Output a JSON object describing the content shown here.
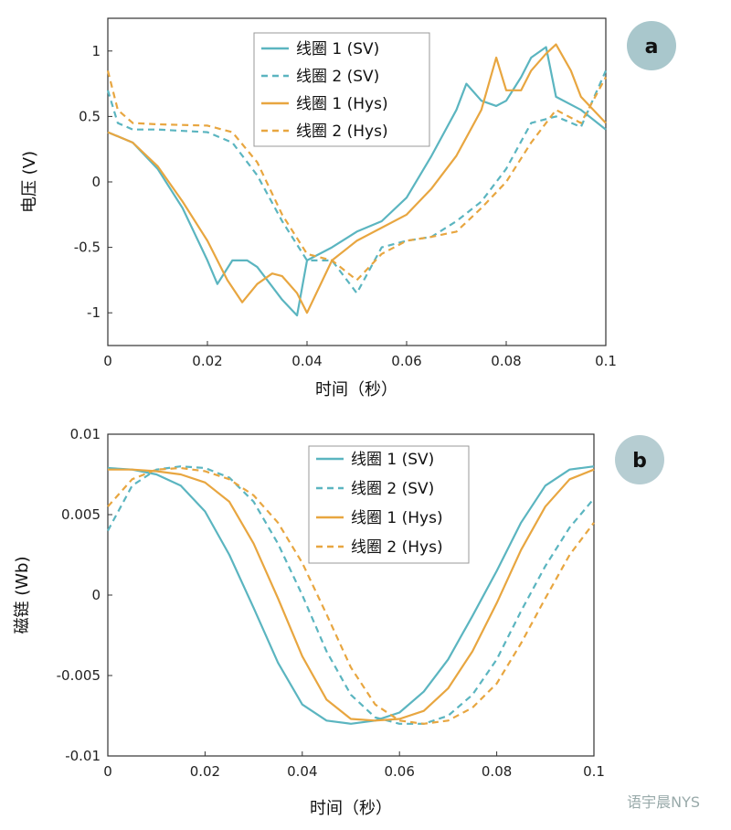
{
  "colors": {
    "sv": "#5bb5c0",
    "hys": "#e8a640",
    "badge_a": "#a9c7cc",
    "badge_b": "#b6cdd2"
  },
  "watermark": "语宇晨NYS",
  "chart_data": [
    {
      "id": "a",
      "type": "line",
      "panel_label": "a",
      "xlabel": "时间（秒）",
      "ylabel": "电压 (V)",
      "xlim": [
        0,
        0.1
      ],
      "ylim": [
        -1.25,
        1.25
      ],
      "xticks": [
        0,
        0.02,
        0.04,
        0.06,
        0.08,
        0.1
      ],
      "xtick_labels": [
        "0",
        "0.02",
        "0.04",
        "0.06",
        "0.08",
        "0.1"
      ],
      "yticks": [
        -1,
        -0.5,
        0,
        0.5,
        1
      ],
      "ytick_labels": [
        "-1",
        "-0.5",
        "0",
        "0.5",
        "1"
      ],
      "grid": false,
      "legend_position": "top-center",
      "series": [
        {
          "name": "线圈 1 (SV)",
          "color_key": "sv",
          "dash": false,
          "x": [
            0,
            0.005,
            0.01,
            0.015,
            0.02,
            0.022,
            0.025,
            0.028,
            0.03,
            0.033,
            0.035,
            0.038,
            0.04,
            0.045,
            0.05,
            0.055,
            0.06,
            0.065,
            0.07,
            0.072,
            0.075,
            0.078,
            0.08,
            0.083,
            0.085,
            0.088,
            0.09,
            0.095,
            0.1
          ],
          "y": [
            0.38,
            0.3,
            0.1,
            -0.2,
            -0.6,
            -0.78,
            -0.6,
            -0.6,
            -0.65,
            -0.8,
            -0.9,
            -1.02,
            -0.6,
            -0.5,
            -0.38,
            -0.3,
            -0.12,
            0.2,
            0.55,
            0.75,
            0.62,
            0.58,
            0.62,
            0.8,
            0.95,
            1.03,
            0.65,
            0.55,
            0.4
          ]
        },
        {
          "name": "线圈 2 (SV)",
          "color_key": "sv",
          "dash": true,
          "x": [
            0,
            0.002,
            0.005,
            0.01,
            0.02,
            0.025,
            0.03,
            0.035,
            0.04,
            0.045,
            0.05,
            0.055,
            0.06,
            0.065,
            0.07,
            0.075,
            0.08,
            0.085,
            0.09,
            0.095,
            0.1
          ],
          "y": [
            0.7,
            0.45,
            0.4,
            0.4,
            0.38,
            0.3,
            0.05,
            -0.3,
            -0.6,
            -0.6,
            -0.85,
            -0.5,
            -0.45,
            -0.42,
            -0.3,
            -0.15,
            0.1,
            0.45,
            0.5,
            0.42,
            0.85
          ]
        },
        {
          "name": "线圈 1 (Hys)",
          "color_key": "hys",
          "dash": false,
          "x": [
            0,
            0.005,
            0.01,
            0.015,
            0.02,
            0.024,
            0.027,
            0.03,
            0.033,
            0.035,
            0.038,
            0.04,
            0.045,
            0.05,
            0.055,
            0.06,
            0.065,
            0.07,
            0.075,
            0.078,
            0.08,
            0.083,
            0.085,
            0.088,
            0.09,
            0.093,
            0.095,
            0.1
          ],
          "y": [
            0.38,
            0.3,
            0.12,
            -0.15,
            -0.45,
            -0.75,
            -0.92,
            -0.78,
            -0.7,
            -0.72,
            -0.85,
            -1.0,
            -0.6,
            -0.45,
            -0.35,
            -0.25,
            -0.05,
            0.2,
            0.55,
            0.95,
            0.7,
            0.7,
            0.85,
            0.98,
            1.05,
            0.85,
            0.65,
            0.45
          ]
        },
        {
          "name": "线圈 2 (Hys)",
          "color_key": "hys",
          "dash": true,
          "x": [
            0,
            0.002,
            0.005,
            0.01,
            0.02,
            0.025,
            0.03,
            0.035,
            0.04,
            0.045,
            0.05,
            0.055,
            0.06,
            0.065,
            0.07,
            0.075,
            0.08,
            0.085,
            0.09,
            0.095,
            0.1
          ],
          "y": [
            0.85,
            0.55,
            0.45,
            0.44,
            0.43,
            0.38,
            0.15,
            -0.25,
            -0.55,
            -0.6,
            -0.75,
            -0.55,
            -0.45,
            -0.42,
            -0.38,
            -0.2,
            0.0,
            0.3,
            0.55,
            0.45,
            0.8
          ]
        }
      ]
    },
    {
      "id": "b",
      "type": "line",
      "panel_label": "b",
      "xlabel": "时间（秒）",
      "ylabel": "磁链 (Wb)",
      "xlim": [
        0,
        0.1
      ],
      "ylim": [
        -0.01,
        0.01
      ],
      "xticks": [
        0,
        0.02,
        0.04,
        0.06,
        0.08,
        0.1
      ],
      "xtick_labels": [
        "0",
        "0.02",
        "0.04",
        "0.06",
        "0.08",
        "0.1"
      ],
      "yticks": [
        -0.01,
        -0.005,
        0,
        0.005,
        0.01
      ],
      "ytick_labels": [
        "-0.01",
        "-0.005",
        "0",
        "0.005",
        "0.01"
      ],
      "grid": false,
      "legend_position": "top-center",
      "series": [
        {
          "name": "线圈 1 (SV)",
          "color_key": "sv",
          "dash": false,
          "x": [
            0,
            0.005,
            0.01,
            0.015,
            0.02,
            0.025,
            0.03,
            0.035,
            0.04,
            0.045,
            0.05,
            0.055,
            0.06,
            0.065,
            0.07,
            0.075,
            0.08,
            0.085,
            0.09,
            0.095,
            0.1
          ],
          "y": [
            0.0079,
            0.0078,
            0.0075,
            0.0068,
            0.0052,
            0.0025,
            -0.0008,
            -0.0042,
            -0.0068,
            -0.0078,
            -0.008,
            -0.0078,
            -0.0073,
            -0.006,
            -0.004,
            -0.0013,
            0.0015,
            0.0045,
            0.0068,
            0.0078,
            0.008
          ]
        },
        {
          "name": "线圈 2 (SV)",
          "color_key": "sv",
          "dash": true,
          "x": [
            0,
            0.005,
            0.01,
            0.015,
            0.02,
            0.025,
            0.03,
            0.035,
            0.04,
            0.045,
            0.05,
            0.055,
            0.06,
            0.065,
            0.07,
            0.075,
            0.08,
            0.085,
            0.09,
            0.095,
            0.1
          ],
          "y": [
            0.004,
            0.0068,
            0.0078,
            0.008,
            0.0079,
            0.0073,
            0.0058,
            0.0032,
            0.0,
            -0.0035,
            -0.0062,
            -0.0076,
            -0.008,
            -0.008,
            -0.0075,
            -0.0062,
            -0.004,
            -0.001,
            0.0018,
            0.0042,
            0.006
          ]
        },
        {
          "name": "线圈 1 (Hys)",
          "color_key": "hys",
          "dash": false,
          "x": [
            0,
            0.005,
            0.01,
            0.015,
            0.02,
            0.025,
            0.03,
            0.035,
            0.04,
            0.045,
            0.05,
            0.055,
            0.06,
            0.065,
            0.07,
            0.075,
            0.08,
            0.085,
            0.09,
            0.095,
            0.1
          ],
          "y": [
            0.0078,
            0.0078,
            0.0077,
            0.0075,
            0.007,
            0.0058,
            0.0032,
            -0.0002,
            -0.0038,
            -0.0065,
            -0.0077,
            -0.0078,
            -0.0077,
            -0.0072,
            -0.0058,
            -0.0035,
            -0.0005,
            0.0028,
            0.0055,
            0.0072,
            0.0078
          ]
        },
        {
          "name": "线圈 2 (Hys)",
          "color_key": "hys",
          "dash": true,
          "x": [
            0,
            0.005,
            0.01,
            0.015,
            0.02,
            0.025,
            0.03,
            0.035,
            0.04,
            0.045,
            0.05,
            0.055,
            0.06,
            0.065,
            0.07,
            0.075,
            0.08,
            0.085,
            0.09,
            0.095,
            0.1
          ],
          "y": [
            0.0055,
            0.0072,
            0.0078,
            0.0079,
            0.0077,
            0.0072,
            0.0062,
            0.0045,
            0.002,
            -0.0012,
            -0.0045,
            -0.0068,
            -0.0078,
            -0.008,
            -0.0078,
            -0.007,
            -0.0055,
            -0.003,
            -0.0002,
            0.0025,
            0.0045
          ]
        }
      ]
    }
  ]
}
